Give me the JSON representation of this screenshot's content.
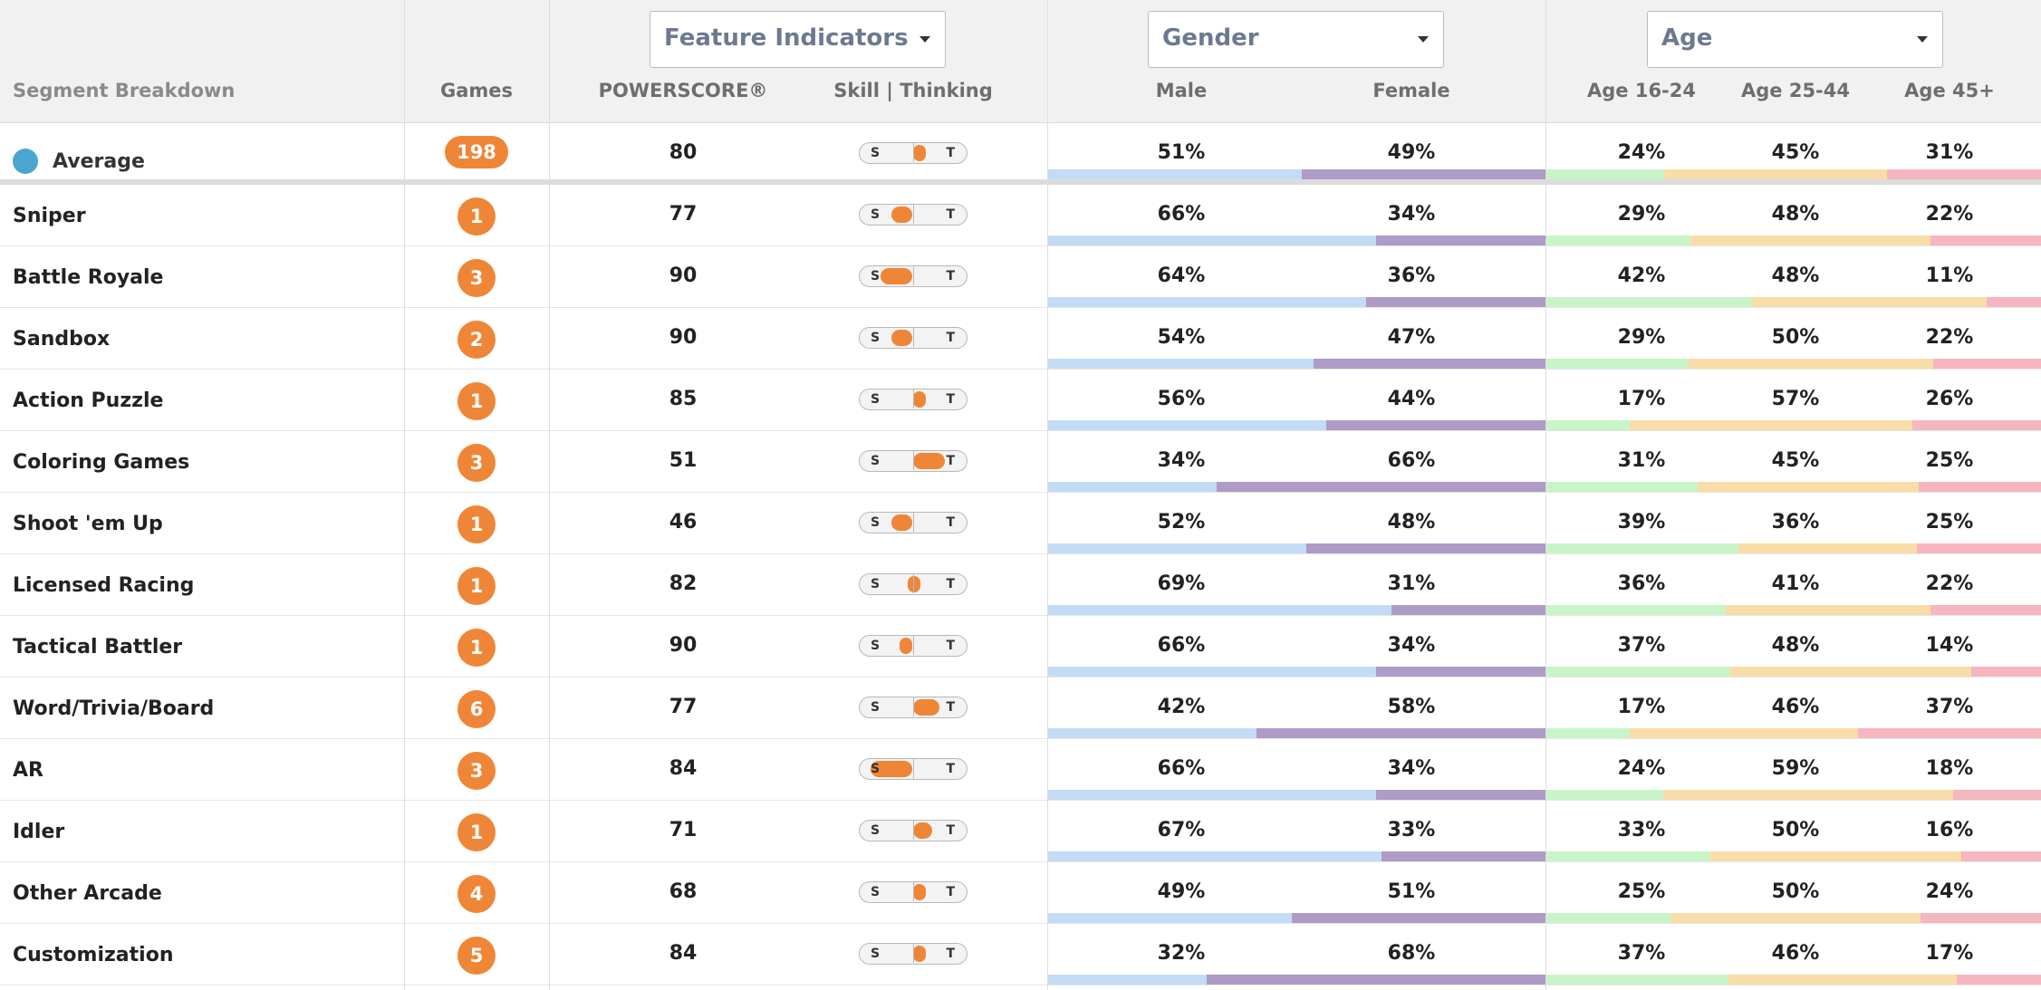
{
  "header": {
    "segment_label": "Segment Breakdown",
    "games_label": "Games",
    "powerscore_label": "POWERSCORE®",
    "skill_label": "Skill | Thinking",
    "male_label": "Male",
    "female_label": "Female",
    "age1_label": "Age 16-24",
    "age2_label": "Age 25-44",
    "age3_label": "Age 45+",
    "dropdowns": {
      "features": "Feature Indicators",
      "gender": "Gender",
      "age": "Age"
    }
  },
  "switch": {
    "skill_letter": "S",
    "thinking_letter": "T"
  },
  "colors": {
    "accent_orange": "#ef8637",
    "average_dot": "#49a6cf",
    "male_bar": "#c3dcf5",
    "female_bar": "#ae9bc8",
    "age1_bar": "#c8f5c8",
    "age2_bar": "#f9dda8",
    "age3_bar": "#f5b6bf"
  },
  "average": {
    "name": "Average",
    "games": "198",
    "powerscore": "80",
    "skill_position": 0.55,
    "male": "51%",
    "female": "49%",
    "age1": "24%",
    "age2": "45%",
    "age3": "31%"
  },
  "rows": [
    {
      "name": "Sniper",
      "games": "1",
      "powerscore": "77",
      "skill_position": 0.3,
      "male": "66%",
      "female": "34%",
      "age1": "29%",
      "age2": "48%",
      "age3": "22%"
    },
    {
      "name": "Battle Royale",
      "games": "3",
      "powerscore": "90",
      "skill_position": 0.2,
      "male": "64%",
      "female": "36%",
      "age1": "42%",
      "age2": "48%",
      "age3": "11%"
    },
    {
      "name": "Sandbox",
      "games": "2",
      "powerscore": "90",
      "skill_position": 0.3,
      "male": "54%",
      "female": "47%",
      "age1": "29%",
      "age2": "50%",
      "age3": "22%"
    },
    {
      "name": "Action Puzzle",
      "games": "1",
      "powerscore": "85",
      "skill_position": 0.62,
      "male": "56%",
      "female": "44%",
      "age1": "17%",
      "age2": "57%",
      "age3": "26%"
    },
    {
      "name": "Coloring Games",
      "games": "3",
      "powerscore": "51",
      "skill_position": 0.8,
      "male": "34%",
      "female": "66%",
      "age1": "31%",
      "age2": "45%",
      "age3": "25%"
    },
    {
      "name": "Shoot 'em Up",
      "games": "1",
      "powerscore": "46",
      "skill_position": 0.3,
      "male": "52%",
      "female": "48%",
      "age1": "39%",
      "age2": "36%",
      "age3": "25%"
    },
    {
      "name": "Licensed Racing",
      "games": "1",
      "powerscore": "82",
      "skill_position": 0.45,
      "male": "69%",
      "female": "31%",
      "age1": "36%",
      "age2": "41%",
      "age3": "22%"
    },
    {
      "name": "Tactical Battler",
      "games": "1",
      "powerscore": "90",
      "skill_position": 0.38,
      "male": "66%",
      "female": "34%",
      "age1": "37%",
      "age2": "48%",
      "age3": "14%"
    },
    {
      "name": "Word/Trivia/Board",
      "games": "6",
      "powerscore": "77",
      "skill_position": 0.75,
      "male": "42%",
      "female": "58%",
      "age1": "17%",
      "age2": "46%",
      "age3": "37%"
    },
    {
      "name": "AR",
      "games": "3",
      "powerscore": "84",
      "skill_position": 0.1,
      "male": "66%",
      "female": "34%",
      "age1": "24%",
      "age2": "59%",
      "age3": "18%"
    },
    {
      "name": "Idler",
      "games": "1",
      "powerscore": "71",
      "skill_position": 0.68,
      "male": "67%",
      "female": "33%",
      "age1": "33%",
      "age2": "50%",
      "age3": "16%"
    },
    {
      "name": "Other Arcade",
      "games": "4",
      "powerscore": "68",
      "skill_position": 0.58,
      "male": "49%",
      "female": "51%",
      "age1": "25%",
      "age2": "50%",
      "age3": "24%"
    },
    {
      "name": "Customization",
      "games": "5",
      "powerscore": "84",
      "skill_position": 0.58,
      "male": "32%",
      "female": "68%",
      "age1": "37%",
      "age2": "46%",
      "age3": "17%"
    }
  ]
}
